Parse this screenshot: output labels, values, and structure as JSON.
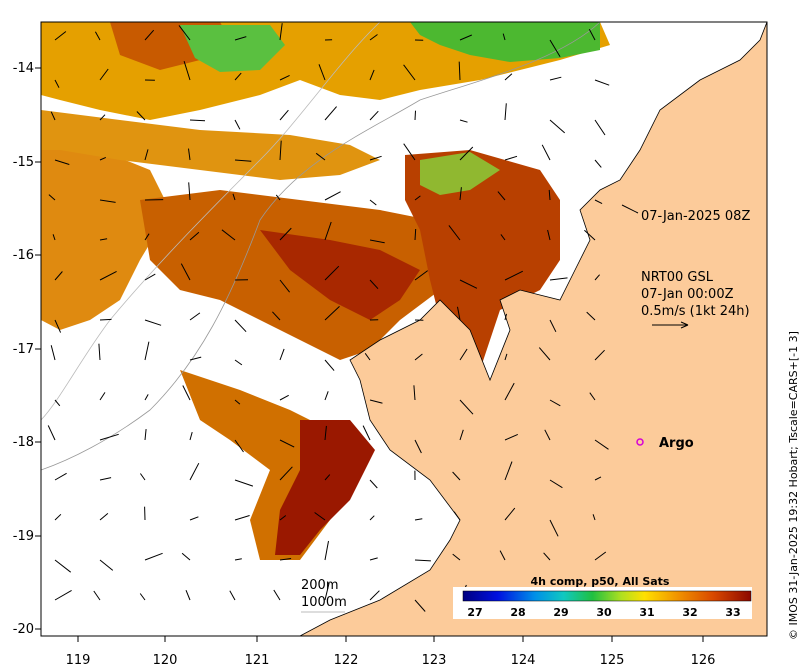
{
  "map": {
    "longitude_ticks": [
      "119",
      "120",
      "121",
      "122",
      "123",
      "124",
      "125",
      "126"
    ],
    "latitude_ticks": [
      "-14",
      "-15",
      "-16",
      "-17",
      "-18",
      "-19",
      "-20"
    ],
    "longitude_range": [
      118.6,
      126.8
    ],
    "latitude_range": [
      -20.05,
      -13.5
    ]
  },
  "annotations": {
    "satellite_time": "07-Jan-2025 08Z",
    "current_product": "NRT00 GSL",
    "current_time": "07-Jan 00:00Z",
    "current_scale": "0.5m/s (1kt 24h)",
    "argo_label": "Argo",
    "contour_200": "200m",
    "contour_1000": "1000m"
  },
  "colorbar": {
    "title": "4h comp, p50, All Sats",
    "ticks": [
      "27",
      "28",
      "29",
      "30",
      "31",
      "32",
      "33"
    ],
    "range": [
      26.5,
      33.2
    ]
  },
  "credit": "© IMOS 31-Jan-2025 19:32 Hobart; Tscale=CARS+[-1 3]",
  "colors": {
    "land": "#fccb9a",
    "argo_marker": "#d600d6",
    "sst_warm": "#a01800",
    "sst_mid": "#e06a00",
    "sst_cool": "#f3b400",
    "sst_green": "#30c030"
  }
}
